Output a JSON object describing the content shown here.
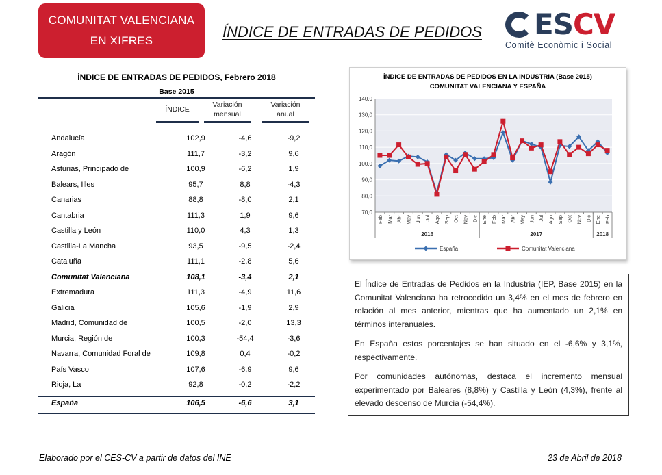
{
  "header": {
    "badge_line1": "COMUNITAT VALENCIANA",
    "badge_line2": "EN XIFRES",
    "title": "ÍNDICE DE ENTRADAS DE PEDIDOS",
    "logo_main_dark": "ES",
    "logo_main_red": "CV",
    "logo_sub": "Comitè Econòmic i Social"
  },
  "table": {
    "title": "ÍNDICE DE ENTRADAS DE PEDIDOS, Febrero 2018",
    "base": "Base 2015",
    "columns": {
      "indice": "ÍNDICE",
      "mensual_1": "Variación",
      "mensual_2": "mensual",
      "anual_1": "Variación",
      "anual_2": "anual"
    },
    "rows": [
      {
        "name": "Andalucía",
        "indice": "102,9",
        "mensual": "-4,6",
        "anual": "-9,2"
      },
      {
        "name": "Aragón",
        "indice": "111,7",
        "mensual": "-3,2",
        "anual": "9,6"
      },
      {
        "name": "Asturias, Principado de",
        "indice": "100,9",
        "mensual": "-6,2",
        "anual": "1,9"
      },
      {
        "name": "Balears, Illes",
        "indice": "95,7",
        "mensual": "8,8",
        "anual": "-4,3"
      },
      {
        "name": "Canarias",
        "indice": "88,8",
        "mensual": "-8,0",
        "anual": "2,1"
      },
      {
        "name": "Cantabria",
        "indice": "111,3",
        "mensual": "1,9",
        "anual": "9,6"
      },
      {
        "name": "Castilla y León",
        "indice": "110,0",
        "mensual": "4,3",
        "anual": "1,3"
      },
      {
        "name": "Castilla-La Mancha",
        "indice": "93,5",
        "mensual": "-9,5",
        "anual": "-2,4"
      },
      {
        "name": "Cataluña",
        "indice": "111,1",
        "mensual": "-2,8",
        "anual": "5,6"
      },
      {
        "name": "Comunitat Valenciana",
        "indice": "108,1",
        "mensual": "-3,4",
        "anual": "2,1"
      },
      {
        "name": "Extremadura",
        "indice": "111,3",
        "mensual": "-4,9",
        "anual": "11,6"
      },
      {
        "name": "Galicia",
        "indice": "105,6",
        "mensual": "-1,9",
        "anual": "2,9"
      },
      {
        "name": "Madrid, Comunidad de",
        "indice": "100,5",
        "mensual": "-2,0",
        "anual": "13,3"
      },
      {
        "name": "Murcia, Región de",
        "indice": "100,3",
        "mensual": "-54,4",
        "anual": "-3,6"
      },
      {
        "name": "Navarra, Comunidad Foral de",
        "indice": "109,8",
        "mensual": "0,4",
        "anual": "-0,2"
      },
      {
        "name": "País Vasco",
        "indice": "107,6",
        "mensual": "-6,9",
        "anual": "9,6"
      },
      {
        "name": "Rioja, La",
        "indice": "92,8",
        "mensual": "-0,2",
        "anual": "-2,2"
      }
    ],
    "total": {
      "name": "España",
      "indice": "106,5",
      "mensual": "-6,6",
      "anual": "3,1"
    }
  },
  "chart_data": {
    "type": "line",
    "title": "ÍNDICE DE ENTRADAS DE PEDIDOS EN LA INDUSTRIA (Base 2015)",
    "subtitle": "COMUNITAT VALENCIANA Y ESPAÑA",
    "categories": [
      "Feb",
      "Mar",
      "Abr",
      "May",
      "Jun",
      "Jul",
      "Ago",
      "Sep",
      "Oct",
      "Nov",
      "Dic",
      "Ene",
      "Feb",
      "Mar",
      "Abr",
      "May",
      "Jun",
      "Jul",
      "Ago",
      "Sep",
      "Oct",
      "Nov",
      "Dic",
      "Ene",
      "Feb"
    ],
    "year_groups": [
      {
        "label": "2016",
        "start": 0,
        "end": 10
      },
      {
        "label": "2017",
        "start": 11,
        "end": 22
      },
      {
        "label": "2018",
        "start": 23,
        "end": 24
      }
    ],
    "ylim": [
      70,
      140
    ],
    "yticks": [
      "70,0",
      "80,0",
      "90,0",
      "100,0",
      "110,0",
      "120,0",
      "130,0",
      "140,0"
    ],
    "grid": true,
    "legend_position": "bottom",
    "series": [
      {
        "name": "España",
        "color": "#3a6fb0",
        "marker": "diamond",
        "values": [
          98.5,
          102.0,
          101.5,
          104.5,
          104.0,
          101.0,
          82.0,
          105.5,
          102.0,
          106.5,
          103.0,
          103.0,
          103.5,
          119.0,
          102.0,
          114.0,
          112.0,
          110.0,
          88.5,
          111.0,
          110.5,
          116.5,
          108.0,
          113.5,
          106.5
        ]
      },
      {
        "name": "Comunitat Valenciana",
        "color": "#cc1f2f",
        "marker": "square",
        "values": [
          105.0,
          105.0,
          111.5,
          104.0,
          99.5,
          100.0,
          81.0,
          104.0,
          95.5,
          105.5,
          96.5,
          101.0,
          105.5,
          126.0,
          103.5,
          114.0,
          109.5,
          111.5,
          95.0,
          113.5,
          105.5,
          110.0,
          106.0,
          111.5,
          108.1
        ]
      }
    ]
  },
  "text": {
    "p1": "El Índice de Entradas de Pedidos en la Industria (IEP, Base 2015) en la Comunitat Valenciana ha retrocedido un 3,4% en el mes de febrero en relación al mes anterior, mientras que ha aumentado un 2,1% en términos interanuales.",
    "p2": "En España estos porcentajes se han situado en el -6,6% y 3,1%, respectivamente.",
    "p3": "Por comunidades autónomas, destaca el incremento mensual experimentado por Baleares (8,8%) y Castilla y León (4,3%), frente al elevado descenso de Murcia (-54,4%)."
  },
  "footer": {
    "source": "Elaborado por el CES-CV a partir de datos del INE",
    "date": "23  de Abril de 2018"
  }
}
